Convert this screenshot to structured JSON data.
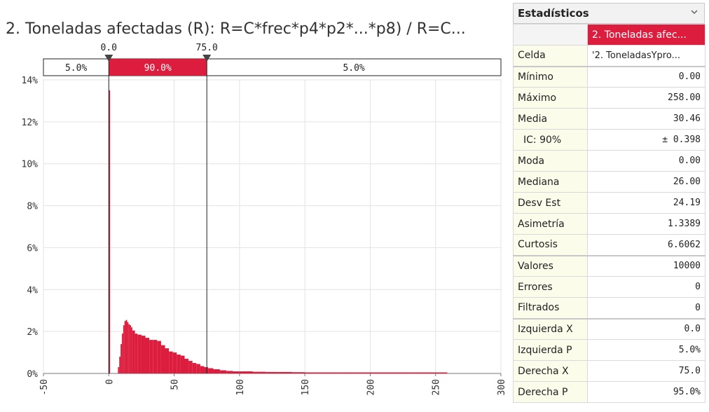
{
  "chart_data": {
    "type": "histogram",
    "title": "2. Toneladas afectadas (R): R=C*frec*p4*p2*...*p8) / R=C...",
    "x_ticks": [
      "-50",
      "0",
      "50",
      "100",
      "150",
      "200",
      "250",
      "300"
    ],
    "y_ticks": [
      "0%",
      "2%",
      "4%",
      "6%",
      "8%",
      "10%",
      "12%",
      "14%"
    ],
    "xlim": [
      -50,
      300
    ],
    "ylim": [
      0,
      14
    ],
    "grid": true,
    "color": "#dc1d3e",
    "markers": {
      "left_x": "0.0",
      "right_x": "75.0",
      "left_value": 0,
      "right_value": 75
    },
    "band": {
      "left_pct": "5.0%",
      "mid_pct": "90.0%",
      "right_pct": "5.0%"
    },
    "bin_width": 1,
    "bins_x": [
      0,
      7,
      8,
      9,
      10,
      11,
      12,
      13,
      14,
      15,
      16,
      17,
      18,
      20,
      22,
      25,
      28,
      31,
      34,
      37,
      40,
      43,
      46,
      49,
      52,
      55,
      58,
      61,
      64,
      67,
      70,
      73,
      76,
      80,
      85,
      90,
      95,
      100,
      110,
      120,
      130,
      140,
      150,
      160,
      175,
      190,
      230,
      258
    ],
    "bins_y": [
      13.5,
      0.3,
      0.8,
      1.4,
      1.9,
      2.3,
      2.5,
      2.55,
      2.45,
      2.35,
      2.3,
      2.2,
      2.05,
      1.9,
      1.85,
      1.8,
      1.7,
      1.6,
      1.6,
      1.55,
      1.35,
      1.2,
      1.05,
      1.0,
      0.9,
      0.85,
      0.7,
      0.6,
      0.5,
      0.45,
      0.35,
      0.3,
      0.25,
      0.2,
      0.15,
      0.12,
      0.1,
      0.1,
      0.08,
      0.07,
      0.07,
      0.06,
      0.05,
      0.05,
      0.05,
      0.05,
      0.05,
      0.05
    ]
  },
  "stats": {
    "title": "Estadísticos",
    "column_header": "2. Toneladas afec...",
    "rows": [
      {
        "label": "Celda",
        "value": "'2. ToneladasYpro..."
      },
      {
        "label": "Mínimo",
        "value": "0.00"
      },
      {
        "label": "Máximo",
        "value": "258.00"
      },
      {
        "label": "Media",
        "value": "30.46"
      },
      {
        "label": "IC: 90%",
        "value": "± 0.398"
      },
      {
        "label": "Moda",
        "value": "0.00"
      },
      {
        "label": "Mediana",
        "value": "26.00"
      },
      {
        "label": "Desv Est",
        "value": "24.19"
      },
      {
        "label": "Asimetría",
        "value": "1.3389"
      },
      {
        "label": "Curtosis",
        "value": "6.6062"
      },
      {
        "label": "Valores",
        "value": "10000"
      },
      {
        "label": "Errores",
        "value": "0"
      },
      {
        "label": "Filtrados",
        "value": "0"
      },
      {
        "label": "Izquierda X",
        "value": "0.0"
      },
      {
        "label": "Izquierda P",
        "value": "5.0%"
      },
      {
        "label": "Derecha X",
        "value": "75.0"
      },
      {
        "label": "Derecha P",
        "value": "95.0%"
      }
    ]
  }
}
